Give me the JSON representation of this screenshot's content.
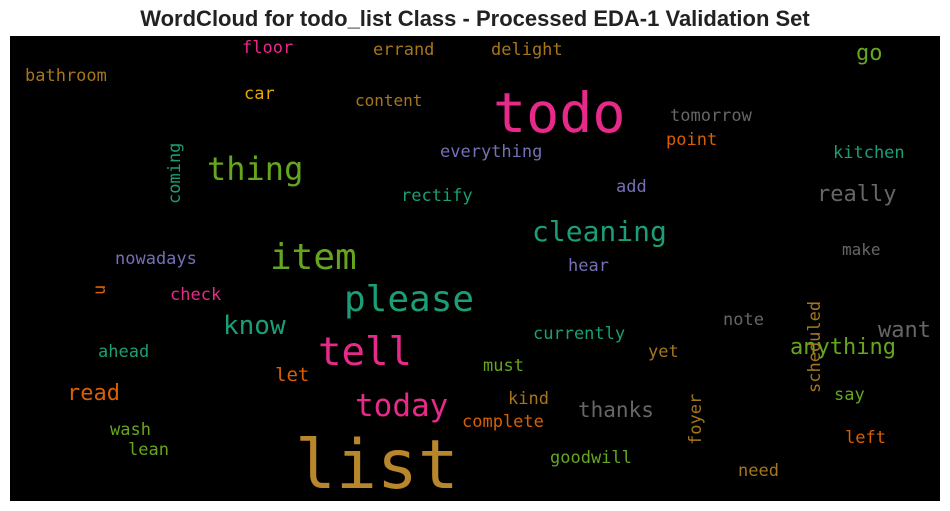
{
  "title": "WordCloud for todo_list Class - Processed EDA-1 Validation Set",
  "chart_data": {
    "type": "wordcloud",
    "words": [
      {
        "text": "list",
        "color": "#b8862b",
        "orientation": "horizontal"
      },
      {
        "text": "todo",
        "color": "#e7298a",
        "orientation": "horizontal"
      },
      {
        "text": "please",
        "color": "#1b9e77",
        "orientation": "horizontal"
      },
      {
        "text": "tell",
        "color": "#e7298a",
        "orientation": "horizontal"
      },
      {
        "text": "item",
        "color": "#66a61e",
        "orientation": "horizontal"
      },
      {
        "text": "thing",
        "color": "#66a61e",
        "orientation": "horizontal"
      },
      {
        "text": "today",
        "color": "#e7298a",
        "orientation": "horizontal"
      },
      {
        "text": "cleaning",
        "color": "#1b9e77",
        "orientation": "horizontal"
      },
      {
        "text": "know",
        "color": "#1b9e77",
        "orientation": "horizontal"
      },
      {
        "text": "anything",
        "color": "#66a61e",
        "orientation": "horizontal"
      },
      {
        "text": "really",
        "color": "#666666",
        "orientation": "horizontal"
      },
      {
        "text": "want",
        "color": "#666666",
        "orientation": "horizontal"
      },
      {
        "text": "read",
        "color": "#d95f02",
        "orientation": "horizontal"
      },
      {
        "text": "thanks",
        "color": "#666666",
        "orientation": "horizontal"
      },
      {
        "text": "go",
        "color": "#66a61e",
        "orientation": "horizontal"
      },
      {
        "text": "tomorrow",
        "color": "#666666",
        "orientation": "horizontal"
      },
      {
        "text": "everything",
        "color": "#7570b3",
        "orientation": "horizontal"
      },
      {
        "text": "point",
        "color": "#d95f02",
        "orientation": "horizontal"
      },
      {
        "text": "kitchen",
        "color": "#1b9e77",
        "orientation": "horizontal"
      },
      {
        "text": "content",
        "color": "#a6761d",
        "orientation": "horizontal"
      },
      {
        "text": "errand",
        "color": "#a6761d",
        "orientation": "horizontal"
      },
      {
        "text": "delight",
        "color": "#a6761d",
        "orientation": "horizontal"
      },
      {
        "text": "floor",
        "color": "#e7298a",
        "orientation": "horizontal"
      },
      {
        "text": "bathroom",
        "color": "#a6761d",
        "orientation": "horizontal"
      },
      {
        "text": "car",
        "color": "#e6ab02",
        "orientation": "horizontal"
      },
      {
        "text": "coming",
        "color": "#1b9e77",
        "orientation": "vertical"
      },
      {
        "text": "rectify",
        "color": "#1b9e77",
        "orientation": "horizontal"
      },
      {
        "text": "add",
        "color": "#7570b3",
        "orientation": "horizontal"
      },
      {
        "text": "scheduled",
        "color": "#a6761d",
        "orientation": "vertical"
      },
      {
        "text": "make",
        "color": "#666666",
        "orientation": "horizontal"
      },
      {
        "text": "nowadays",
        "color": "#7570b3",
        "orientation": "horizontal"
      },
      {
        "text": "u",
        "color": "#d95f02",
        "orientation": "vertical"
      },
      {
        "text": "hear",
        "color": "#7570b3",
        "orientation": "horizontal"
      },
      {
        "text": "check",
        "color": "#e7298a",
        "orientation": "horizontal"
      },
      {
        "text": "note",
        "color": "#666666",
        "orientation": "horizontal"
      },
      {
        "text": "currently",
        "color": "#1b9e77",
        "orientation": "horizontal"
      },
      {
        "text": "ahead",
        "color": "#1b9e77",
        "orientation": "horizontal"
      },
      {
        "text": "let",
        "color": "#d95f02",
        "orientation": "horizontal"
      },
      {
        "text": "must",
        "color": "#66a61e",
        "orientation": "horizontal"
      },
      {
        "text": "yet",
        "color": "#a6761d",
        "orientation": "horizontal"
      },
      {
        "text": "foyer",
        "color": "#a6761d",
        "orientation": "vertical"
      },
      {
        "text": "kind",
        "color": "#a6761d",
        "orientation": "horizontal"
      },
      {
        "text": "say",
        "color": "#66a61e",
        "orientation": "horizontal"
      },
      {
        "text": "complete",
        "color": "#d95f02",
        "orientation": "horizontal"
      },
      {
        "text": "wash",
        "color": "#66a61e",
        "orientation": "horizontal"
      },
      {
        "text": "lean",
        "color": "#66a61e",
        "orientation": "horizontal"
      },
      {
        "text": "left",
        "color": "#d95f02",
        "orientation": "horizontal"
      },
      {
        "text": "goodwill",
        "color": "#66a61e",
        "orientation": "horizontal"
      },
      {
        "text": "need",
        "color": "#a6761d",
        "orientation": "horizontal"
      }
    ]
  }
}
